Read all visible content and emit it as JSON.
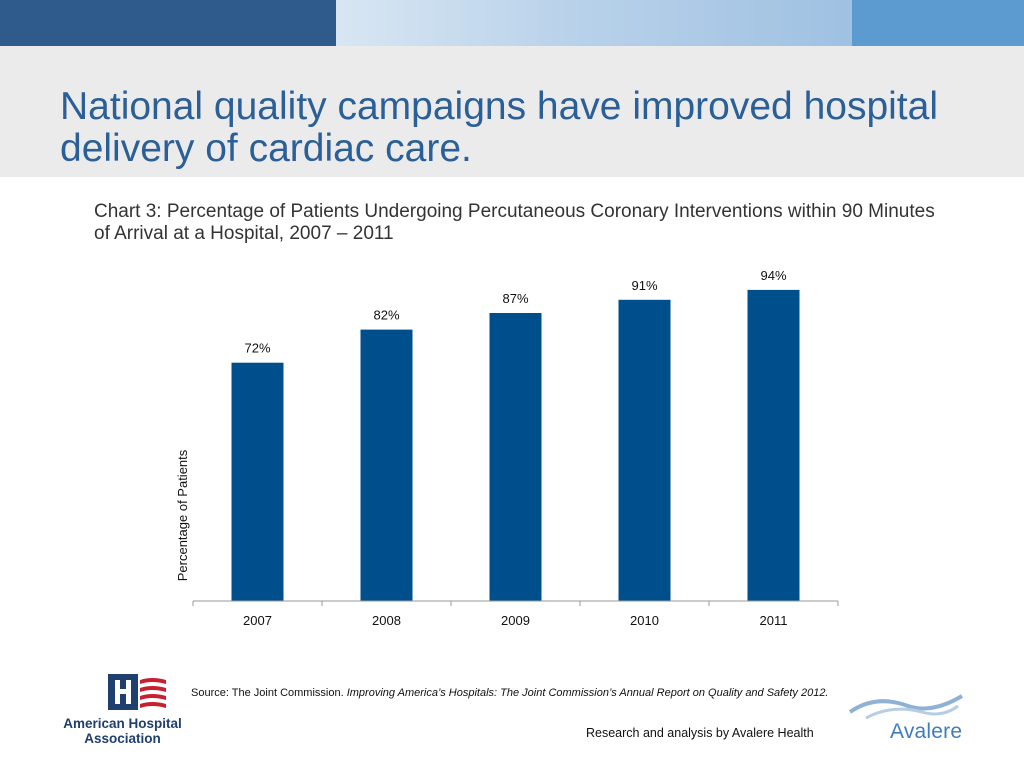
{
  "slide": {
    "title": "National quality campaigns have improved hospital delivery of cardiac care.",
    "source_prefix": "Source: The Joint Commission. ",
    "source_italic": "Improving America’s Hospitals: The Joint Commission’s Annual Report on Quality and Safety 2012.",
    "credit": "Research and analysis by Avalere Health"
  },
  "logos": {
    "aha_name": "American Hospital Association",
    "avalere_name": "Avalere"
  },
  "colors": {
    "bar": "#004f8d",
    "title": "#2a5f97",
    "banner_dark": "#2e5b8c"
  },
  "chart_data": {
    "type": "bar",
    "title": "Chart 3: Percentage of Patients Undergoing Percutaneous Coronary Interventions within 90 Minutes of Arrival at a Hospital, 2007 – 2011",
    "xlabel": "",
    "ylabel": "Percentage of Patients",
    "categories": [
      "2007",
      "2008",
      "2009",
      "2010",
      "2011"
    ],
    "values": [
      72,
      82,
      87,
      91,
      94
    ],
    "data_labels": [
      "72%",
      "82%",
      "87%",
      "91%",
      "94%"
    ],
    "ylim": [
      0,
      100
    ],
    "grid": false,
    "legend": "none"
  }
}
